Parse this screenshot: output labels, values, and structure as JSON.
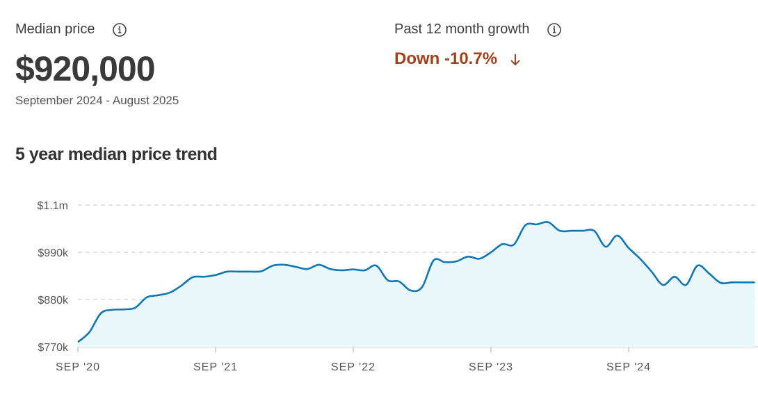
{
  "header": {
    "median_label": "Median price",
    "median_value": "$920,000",
    "period": "September 2024 - August 2025",
    "growth_label": "Past 12 month growth",
    "growth_value": "Down -10.7%"
  },
  "chart_data": {
    "type": "line",
    "title": "5 year median price trend",
    "categories": [
      "2020-09",
      "2020-10",
      "2020-11",
      "2020-12",
      "2021-01",
      "2021-02",
      "2021-03",
      "2021-04",
      "2021-05",
      "2021-06",
      "2021-07",
      "2021-08",
      "2021-09",
      "2021-10",
      "2021-11",
      "2021-12",
      "2022-01",
      "2022-02",
      "2022-03",
      "2022-04",
      "2022-05",
      "2022-06",
      "2022-07",
      "2022-08",
      "2022-09",
      "2022-10",
      "2022-11",
      "2022-12",
      "2023-01",
      "2023-02",
      "2023-03",
      "2023-04",
      "2023-05",
      "2023-06",
      "2023-07",
      "2023-08",
      "2023-09",
      "2023-10",
      "2023-11",
      "2023-12",
      "2024-01",
      "2024-02",
      "2024-03",
      "2024-04",
      "2024-05",
      "2024-06",
      "2024-07",
      "2024-08",
      "2024-09",
      "2024-10",
      "2024-11",
      "2024-12",
      "2025-01",
      "2025-02",
      "2025-03",
      "2025-04",
      "2025-05",
      "2025-06",
      "2025-07",
      "2025-08"
    ],
    "series": [
      {
        "name": "Median price",
        "color": "#0f77b4",
        "values": [
          781000,
          804000,
          848000,
          856000,
          857000,
          861000,
          885000,
          890000,
          896000,
          912000,
          932000,
          933000,
          937000,
          945000,
          945000,
          945000,
          946000,
          959000,
          961000,
          956000,
          951000,
          961000,
          951000,
          948000,
          950000,
          948000,
          959000,
          925000,
          922000,
          901000,
          909000,
          971000,
          967000,
          969000,
          980000,
          975000,
          990000,
          1009000,
          1008000,
          1053000,
          1055000,
          1060000,
          1040000,
          1040000,
          1040000,
          1040000,
          1003000,
          1029000,
          1000000,
          975000,
          945000,
          914000,
          933000,
          914000,
          959000,
          941000,
          919000,
          920000,
          920000,
          920000
        ]
      }
    ],
    "fill_color": "#eaf8fc",
    "ylim": [
      770000,
      1100000
    ],
    "yticks": [
      {
        "value": 770000,
        "label": "$770k"
      },
      {
        "value": 880000,
        "label": "$880k"
      },
      {
        "value": 990000,
        "label": "$990k"
      },
      {
        "value": 1100000,
        "label": "$1.1m"
      }
    ],
    "xticks": [
      {
        "value": "2020-09",
        "label": "SEP '20"
      },
      {
        "value": "2021-09",
        "label": "SEP '21"
      },
      {
        "value": "2022-09",
        "label": "SEP '22"
      },
      {
        "value": "2023-09",
        "label": "SEP '23"
      },
      {
        "value": "2024-09",
        "label": "SEP '24"
      }
    ],
    "grid": true
  }
}
